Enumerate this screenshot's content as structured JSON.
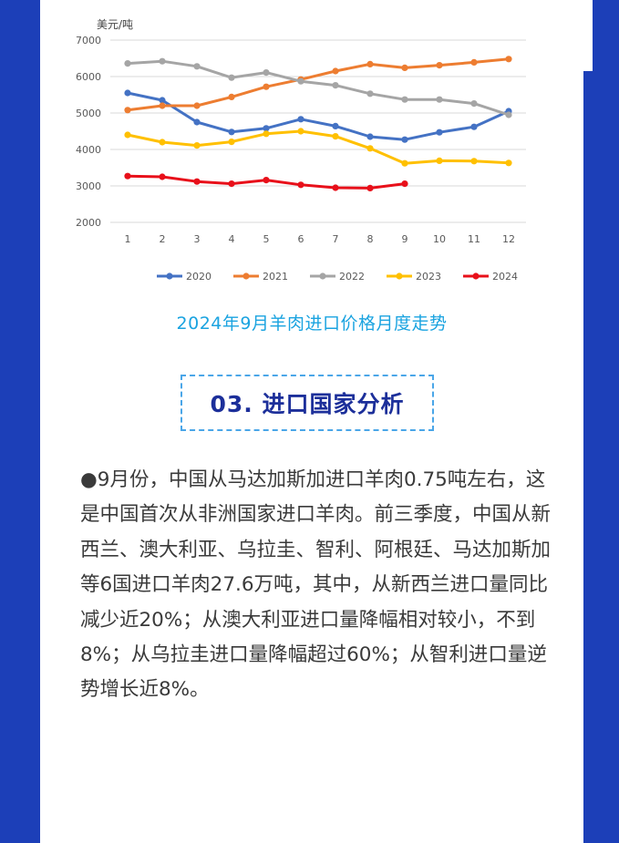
{
  "chart_data": {
    "type": "line",
    "ylabel": "美元/吨",
    "ylim": [
      2000,
      7000
    ],
    "yticks": [
      2000,
      3000,
      4000,
      5000,
      6000,
      7000
    ],
    "x": [
      1,
      2,
      3,
      4,
      5,
      6,
      7,
      8,
      9,
      10,
      11,
      12
    ],
    "grid": true,
    "legend": "bottom",
    "series": [
      {
        "name": "2020",
        "color": "#4472c4",
        "values": [
          5550,
          5350,
          4750,
          4480,
          4580,
          4830,
          4640,
          4350,
          4270,
          4470,
          4620,
          5050
        ]
      },
      {
        "name": "2021",
        "color": "#ed7d31",
        "values": [
          5080,
          5200,
          5200,
          5440,
          5720,
          5920,
          6150,
          6340,
          6240,
          6310,
          6390,
          6480
        ]
      },
      {
        "name": "2022",
        "color": "#a5a5a5",
        "values": [
          6360,
          6420,
          6280,
          5970,
          6110,
          5870,
          5760,
          5530,
          5370,
          5370,
          5260,
          4950
        ]
      },
      {
        "name": "2023",
        "color": "#ffc000",
        "values": [
          4400,
          4200,
          4110,
          4210,
          4430,
          4500,
          4360,
          4030,
          3620,
          3690,
          3680,
          3630
        ]
      },
      {
        "name": "2024",
        "color": "#e8101a",
        "values": [
          3270,
          3250,
          3120,
          3060,
          3160,
          3030,
          2950,
          2940,
          3060,
          null,
          null,
          null
        ]
      }
    ]
  },
  "caption": "2024年9月羊肉进口价格月度走势",
  "section_title": "03. 进口国家分析",
  "body_text": "●9月份，中国从马达加斯加进口羊肉0.75吨左右，这是中国首次从非洲国家进口羊肉。前三季度，中国从新西兰、澳大利亚、乌拉圭、智利、阿根廷、马达加斯加等6国进口羊肉27.6万吨，其中，从新西兰进口量同比减少近20%；从澳大利亚进口量降幅相对较小，不到8%；从乌拉圭进口量降幅超过60%；从智利进口量逆势增长近8%。"
}
